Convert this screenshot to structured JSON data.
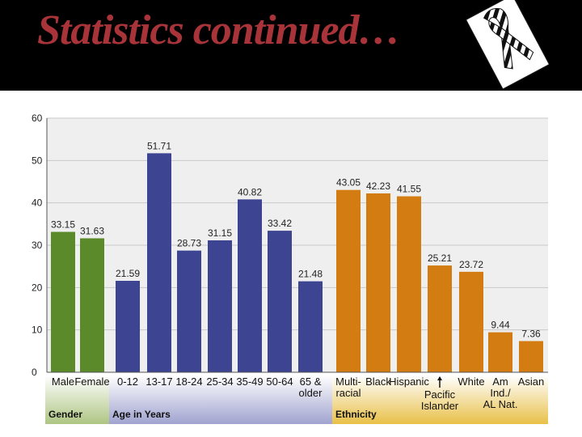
{
  "header": {
    "title": "Statistics continued…",
    "ribbon_icon": "awareness-ribbon-icon"
  },
  "colors": {
    "header_bg": "#000000",
    "title": "#a8343a",
    "gender": "#5a8a2a",
    "age": "#3d4593",
    "ethnicity": "#d27c12",
    "gender_band": "#aec583",
    "age_band": "#a0a3cf",
    "ethnicity_band": "#e8c048",
    "plot_bg": "#efefef"
  },
  "chart_data": {
    "type": "bar",
    "ylim": [
      0,
      60
    ],
    "yticks": [
      0,
      10,
      20,
      30,
      40,
      50,
      60
    ],
    "grid": true,
    "groups": [
      {
        "name": "Gender",
        "color_key": "gender",
        "bars": [
          {
            "label": [
              "Male"
            ],
            "value": 33.15,
            "value_label": "33.15"
          },
          {
            "label": [
              "Female"
            ],
            "value": 31.63,
            "value_label": "31.63"
          }
        ]
      },
      {
        "name": "Age in Years",
        "color_key": "age",
        "bars": [
          {
            "label": [
              "0-12"
            ],
            "value": 21.59,
            "value_label": "21.59"
          },
          {
            "label": [
              "13-17"
            ],
            "value": 51.71,
            "value_label": "51.71"
          },
          {
            "label": [
              "18-24"
            ],
            "value": 28.73,
            "value_label": "28.73"
          },
          {
            "label": [
              "25-34"
            ],
            "value": 31.15,
            "value_label": "31.15"
          },
          {
            "label": [
              "35-49"
            ],
            "value": 40.82,
            "value_label": "40.82"
          },
          {
            "label": [
              "50-64"
            ],
            "value": 33.42,
            "value_label": "33.42"
          },
          {
            "label": [
              "65 &",
              "older"
            ],
            "value": 21.48,
            "value_label": "21.48"
          }
        ]
      },
      {
        "name": "Ethnicity",
        "color_key": "ethnicity",
        "bars": [
          {
            "label": [
              "Multi-",
              "racial"
            ],
            "value": 43.05,
            "value_label": "43.05"
          },
          {
            "label": [
              "Black"
            ],
            "value": 42.23,
            "value_label": "42.23"
          },
          {
            "label": [
              "Hispanic"
            ],
            "value": 41.55,
            "value_label": "41.55"
          },
          {
            "label": [
              "Pacific",
              "Islander"
            ],
            "value": 25.21,
            "value_label": "25.21",
            "label_below_arrow": true
          },
          {
            "label": [
              "White"
            ],
            "value": 23.72,
            "value_label": "23.72"
          },
          {
            "label": [
              "Am",
              "Ind./",
              "AL Nat."
            ],
            "value": 9.44,
            "value_label": "9.44"
          },
          {
            "label": [
              "Asian"
            ],
            "value": 7.36,
            "value_label": "7.36"
          }
        ]
      }
    ]
  }
}
